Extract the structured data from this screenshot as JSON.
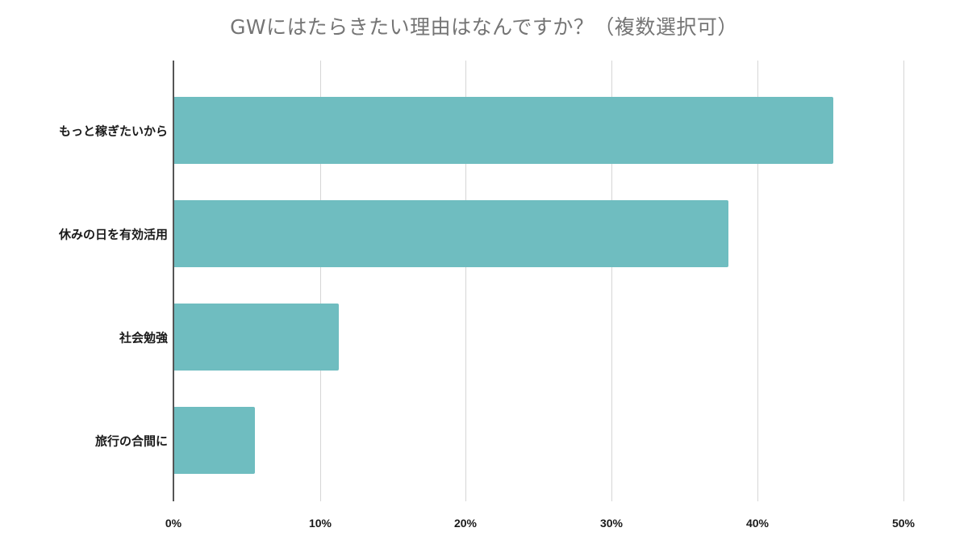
{
  "chart_data": {
    "type": "bar",
    "orientation": "horizontal",
    "title": "GWにはたらきたい理由はなんですか？（複数選択可）",
    "categories": [
      "もっと稼ぎたいから",
      "休みの日を有効活用",
      "社会勉強",
      "旅行の合間に"
    ],
    "values": [
      45.2,
      38.0,
      11.3,
      5.6
    ],
    "xlabel": "",
    "ylabel": "",
    "xlim": [
      0,
      50
    ],
    "x_ticks": [
      "0%",
      "10%",
      "20%",
      "30%",
      "40%",
      "50%"
    ],
    "grid": true,
    "legend": "none",
    "bar_color": "#6fbdc0",
    "unit": "%"
  }
}
